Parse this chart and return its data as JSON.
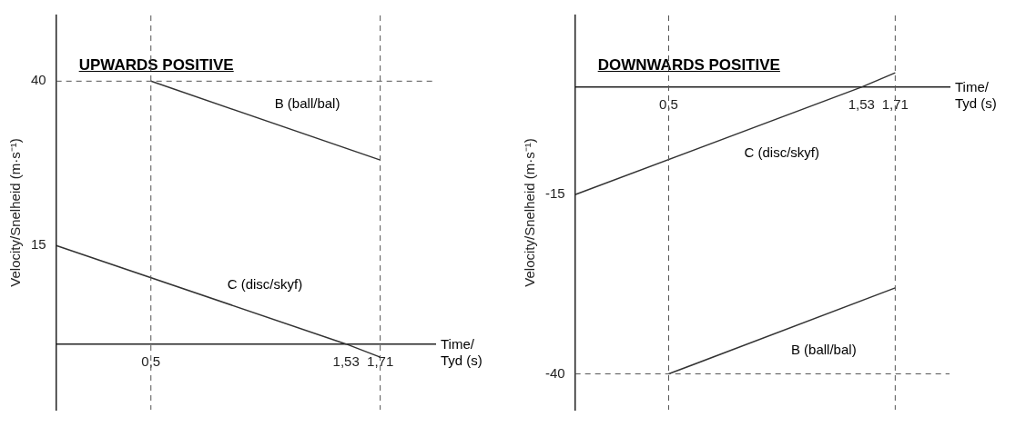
{
  "chart_data": [
    {
      "type": "line",
      "title": "UPWARDS POSITIVE",
      "xlabel": "Time/ Tyd (s)",
      "ylabel": "Velocity/Snelheid (m·s⁻¹)",
      "xlim": [
        0,
        2
      ],
      "ylim": [
        -10,
        50
      ],
      "xticks": [
        {
          "value": 0.5,
          "label": "0,5"
        },
        {
          "value": 1.53,
          "label": "1,53"
        },
        {
          "value": 1.71,
          "label": "1,71"
        }
      ],
      "yticks": [
        15,
        40
      ],
      "grid": false,
      "line_style": "solid",
      "series": [
        {
          "name": "B (ball/bal)",
          "color": "#333333",
          "x": [
            0.5,
            1.71
          ],
          "values": [
            40,
            28
          ]
        },
        {
          "name": "C (disc/skyf)",
          "color": "#333333",
          "x": [
            0,
            1.53,
            1.71
          ],
          "values": [
            15,
            0,
            -2
          ]
        }
      ],
      "ref_lines": [
        {
          "axis": "x",
          "value": 0.5,
          "line_style": "dashed",
          "color": "#555555"
        },
        {
          "axis": "x",
          "value": 1.71,
          "line_style": "dashed",
          "color": "#555555"
        },
        {
          "axis": "y",
          "value": 40,
          "line_style": "dashed",
          "color": "#555555"
        }
      ]
    },
    {
      "type": "line",
      "title": "DOWNWARDS POSITIVE",
      "xlabel": "Time/ Tyd (s)",
      "ylabel": "Velocity/Snelheid (m·s⁻¹)",
      "xlim": [
        0,
        2
      ],
      "ylim": [
        -45,
        10
      ],
      "xticks": [
        {
          "value": 0.5,
          "label": "0,5"
        },
        {
          "value": 1.53,
          "label": "1,53"
        },
        {
          "value": 1.71,
          "label": "1,71"
        }
      ],
      "yticks": [
        -40,
        -15
      ],
      "grid": false,
      "line_style": "solid",
      "series": [
        {
          "name": "C (disc/skyf)",
          "color": "#333333",
          "x": [
            0,
            1.53,
            1.71
          ],
          "values": [
            -15,
            0,
            2
          ]
        },
        {
          "name": "B (ball/bal)",
          "color": "#333333",
          "x": [
            0.5,
            1.71
          ],
          "values": [
            -40,
            -28
          ]
        }
      ],
      "ref_lines": [
        {
          "axis": "x",
          "value": 0.5,
          "line_style": "dashed",
          "color": "#555555"
        },
        {
          "axis": "x",
          "value": 1.71,
          "line_style": "dashed",
          "color": "#555555"
        },
        {
          "axis": "y",
          "value": -40,
          "line_style": "dashed",
          "color": "#555555"
        }
      ]
    }
  ]
}
